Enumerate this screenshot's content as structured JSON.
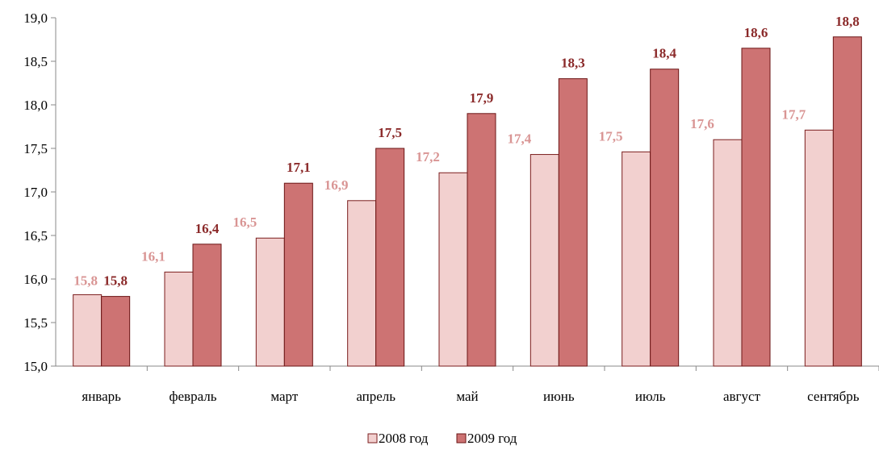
{
  "chart_data": {
    "type": "bar",
    "categories": [
      "январь",
      "февраль",
      "март",
      "апрель",
      "май",
      "июнь",
      "июль",
      "август",
      "сентябрь"
    ],
    "series": [
      {
        "name": "2008 год",
        "values": [
          15.82,
          16.08,
          16.47,
          16.9,
          17.22,
          17.43,
          17.46,
          17.6,
          17.71
        ],
        "labels": [
          "15,8",
          "16,1",
          "16,5",
          "16,9",
          "17,2",
          "17,4",
          "17,5",
          "17,6",
          "17,7"
        ],
        "fill": "#f2d0cf",
        "stroke": "#7b1d1d",
        "label_color": "#d99594"
      },
      {
        "name": "2009 год",
        "values": [
          15.8,
          16.4,
          17.1,
          17.5,
          17.9,
          18.3,
          18.41,
          18.65,
          18.78
        ],
        "labels": [
          "15,8",
          "16,4",
          "17,1",
          "17,5",
          "17,9",
          "18,3",
          "18,4",
          "18,6",
          "18,8"
        ],
        "fill": "#cd7373",
        "stroke": "#6b1414",
        "label_color": "#8b2a2a"
      }
    ],
    "ylim": [
      15.0,
      19.0
    ],
    "y_ticks": [
      "15,0",
      "15,5",
      "16,0",
      "16,5",
      "17,0",
      "17,5",
      "18,0",
      "18,5",
      "19,0"
    ],
    "grid": false,
    "legend_position": "bottom"
  }
}
